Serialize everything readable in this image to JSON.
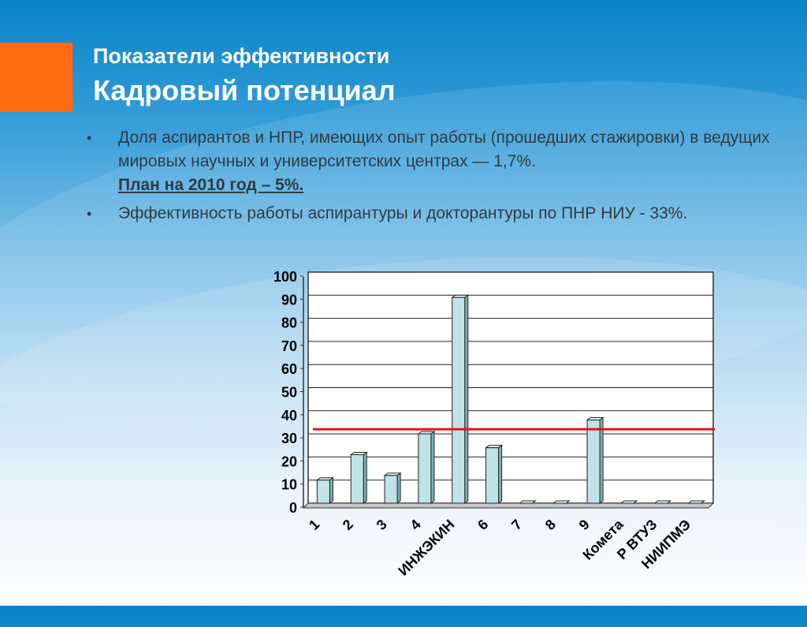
{
  "slide": {
    "title_line1": "Показатели эффективности",
    "title_line2": "Кадровый потенциал",
    "bullets": [
      {
        "text": "Доля аспирантов и НПР, имеющих опыт работы (прошедших стажировки) в ведущих мировых научных и университетских центрах — 1,7%.",
        "plan": "План на 2010 год – 5%."
      },
      {
        "text": "Эффективность работы аспирантуры и докторантуры по ПНР НИУ - 33%."
      }
    ]
  },
  "chart_data": {
    "type": "bar",
    "categories": [
      "1",
      "2",
      "3",
      "4",
      "ИНЖЭКИН",
      "6",
      "7",
      "8",
      "9",
      "Комета",
      "Р ВТУЗ",
      "НИИПМЭ"
    ],
    "values": [
      10,
      21,
      12,
      30,
      89,
      24,
      0,
      0,
      36,
      0,
      0,
      0
    ],
    "ylim": [
      0,
      100
    ],
    "yticks": [
      0,
      10,
      20,
      30,
      40,
      50,
      60,
      70,
      80,
      90,
      100
    ],
    "reference_line": 32,
    "grid": true,
    "colors": {
      "bar": "#bfe3e6",
      "bar_side": "#7fb2b6",
      "reference": "#e3151c"
    }
  }
}
